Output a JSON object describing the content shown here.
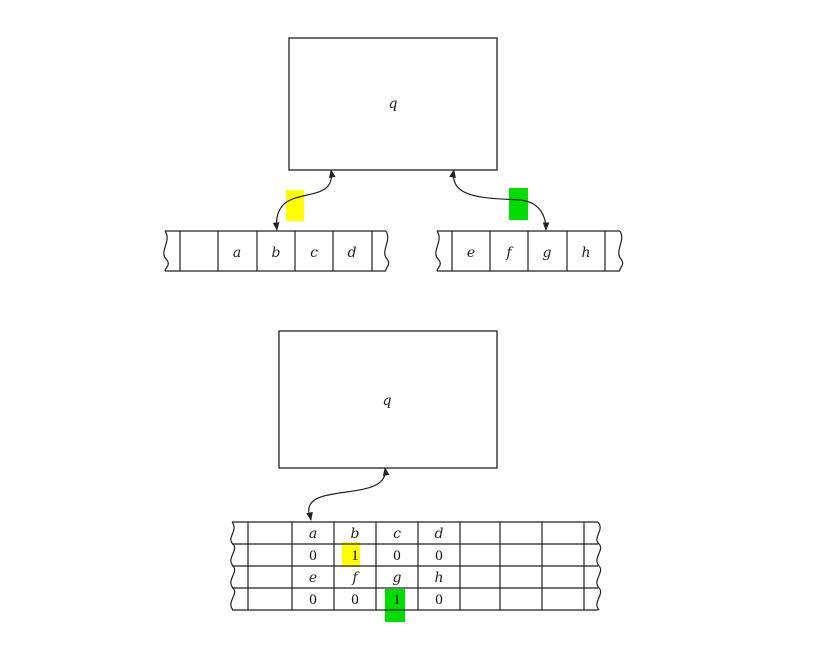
{
  "top_machine": {
    "state_label": "q",
    "tape1": {
      "cells": [
        "",
        "a",
        "b",
        "c",
        "d"
      ]
    },
    "tape2": {
      "cells": [
        "e",
        "f",
        "g",
        "h"
      ]
    },
    "head1_marker_color": "#ffff00",
    "head2_marker_color": "#00dd00"
  },
  "bottom_machine": {
    "state_label": "q",
    "track_rows": [
      [
        "a",
        "b",
        "c",
        "d"
      ],
      [
        "0",
        "1",
        "0",
        "0"
      ],
      [
        "e",
        "f",
        "g",
        "h"
      ],
      [
        "0",
        "0",
        "1",
        "0"
      ]
    ],
    "marker1_color": "#ffff00",
    "marker2_color": "#00dd00"
  }
}
